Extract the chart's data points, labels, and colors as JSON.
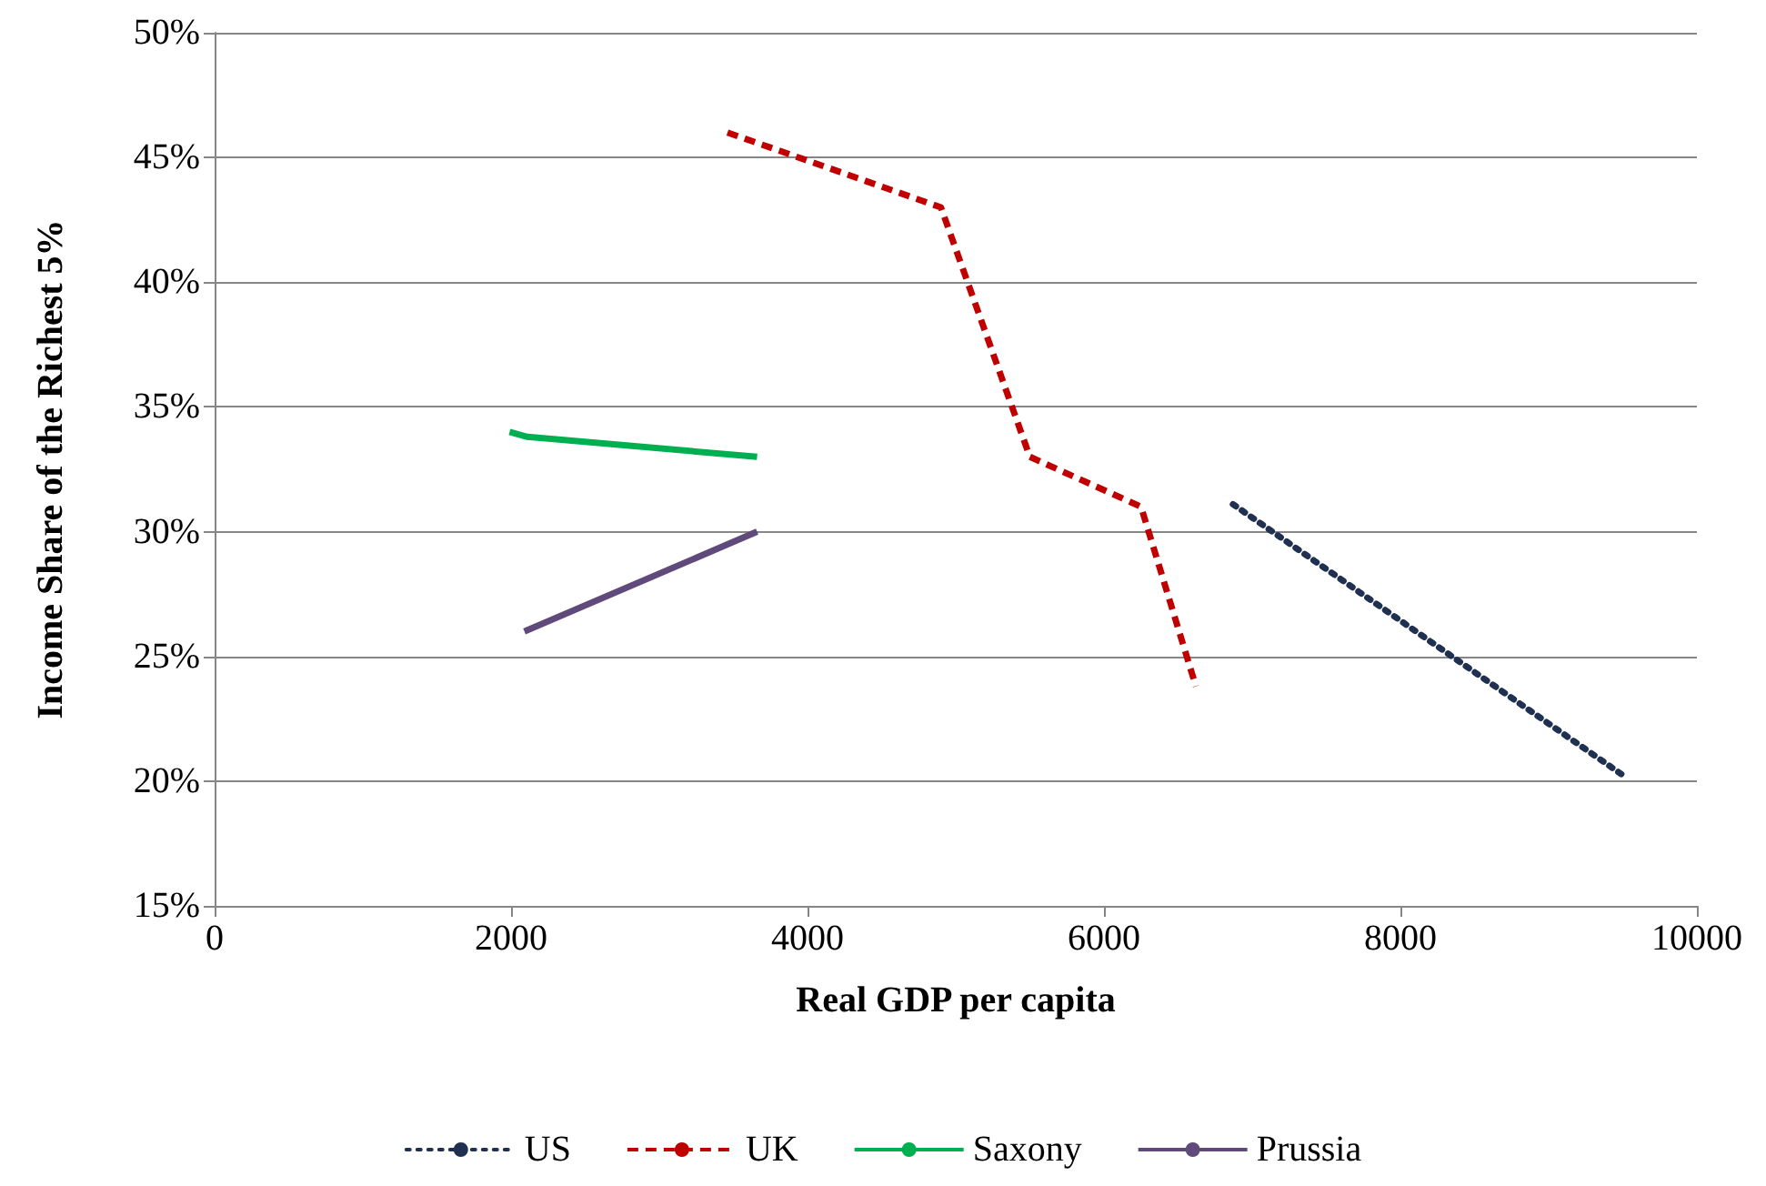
{
  "chart_data": {
    "type": "line",
    "xlabel": "Real GDP per capita",
    "ylabel": "Income Share of the Richest 5%",
    "xlim": [
      0,
      10000
    ],
    "xticks": [
      0,
      2000,
      4000,
      6000,
      8000,
      10000
    ],
    "ylim": [
      15,
      50
    ],
    "yticks": [
      {
        "value": 15,
        "label": "15%"
      },
      {
        "value": 20,
        "label": "20%"
      },
      {
        "value": 25,
        "label": "25%"
      },
      {
        "value": 30,
        "label": "30%"
      },
      {
        "value": 35,
        "label": "35%"
      },
      {
        "value": 40,
        "label": "40%"
      },
      {
        "value": 45,
        "label": "45%"
      },
      {
        "value": 50,
        "label": "50%"
      }
    ],
    "grid": "y",
    "legend": "bottom",
    "marker": "none",
    "series": [
      {
        "name": "US",
        "color": "#1f3050",
        "line_style": "dotted",
        "x": [
          6870,
          9510
        ],
        "values": [
          31.1,
          20.2
        ]
      },
      {
        "name": "UK",
        "color": "#c00000",
        "line_style": "dashed",
        "x": [
          3460,
          4900,
          5500,
          6250,
          6620
        ],
        "values": [
          46,
          43,
          33,
          31,
          23.8
        ]
      },
      {
        "name": "Saxony",
        "color": "#00b050",
        "line_style": "solid",
        "x": [
          1990,
          2110,
          3660
        ],
        "values": [
          34,
          33.8,
          33
        ]
      },
      {
        "name": "Prussia",
        "color": "#604a7b",
        "line_style": "solid",
        "x": [
          2090,
          3660
        ],
        "values": [
          26,
          30
        ]
      }
    ]
  }
}
